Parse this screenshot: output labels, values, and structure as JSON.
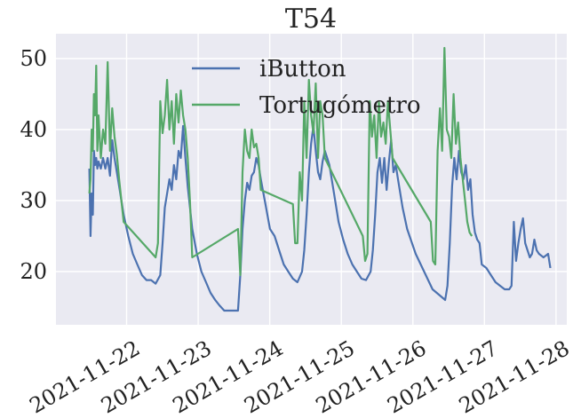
{
  "chart_data": {
    "type": "line",
    "title": "T54",
    "xlabel": "",
    "ylabel": "",
    "x_range": [
      "2021-11-21 00:19",
      "2021-11-28 03:36"
    ],
    "ylim": [
      12.5,
      53.5
    ],
    "x_ticks": [
      "2021-11-22",
      "2021-11-23",
      "2021-11-24",
      "2021-11-25",
      "2021-11-26",
      "2021-11-27",
      "2021-11-28"
    ],
    "y_ticks": [
      20,
      30,
      40,
      50
    ],
    "grid": true,
    "legend_position": "top-center",
    "background": "#EAEAF2",
    "series": [
      {
        "name": "iButton",
        "color": "#4C72B0",
        "points": [
          [
            "2021-11-21 11:31",
            34.5
          ],
          [
            "2021-11-21 11:54",
            25
          ],
          [
            "2021-11-21 12:17",
            31
          ],
          [
            "2021-11-21 12:40",
            28
          ],
          [
            "2021-11-21 13:03",
            37
          ],
          [
            "2021-11-21 13:26",
            35
          ],
          [
            "2021-11-21 13:49",
            36
          ],
          [
            "2021-11-21 14:12",
            34.5
          ],
          [
            "2021-11-21 14:35",
            35.5
          ],
          [
            "2021-11-21 15:21",
            34.5
          ],
          [
            "2021-11-21 16:07",
            36
          ],
          [
            "2021-11-21 16:53",
            34.5
          ],
          [
            "2021-11-21 17:39",
            36
          ],
          [
            "2021-11-21 18:25",
            33.5
          ],
          [
            "2021-11-21 19:11",
            38.5
          ],
          [
            "2021-11-21 19:57",
            36
          ],
          [
            "2021-11-21 20:43",
            34
          ],
          [
            "2021-11-21 21:29",
            32
          ],
          [
            "2021-11-21 23:01",
            28
          ],
          [
            "2021-11-22 00:33",
            25
          ],
          [
            "2021-11-22 02:05",
            22.5
          ],
          [
            "2021-11-22 03:37",
            21
          ],
          [
            "2021-11-22 05:09",
            19.5
          ],
          [
            "2021-11-22 06:41",
            18.8
          ],
          [
            "2021-11-22 08:13",
            18.8
          ],
          [
            "2021-11-22 09:45",
            18.3
          ],
          [
            "2021-11-22 11:17",
            19.5
          ],
          [
            "2021-11-22 12:03",
            24
          ],
          [
            "2021-11-22 12:49",
            29
          ],
          [
            "2021-11-22 13:35",
            31
          ],
          [
            "2021-11-22 14:21",
            33
          ],
          [
            "2021-11-22 15:07",
            31.5
          ],
          [
            "2021-11-22 15:53",
            35
          ],
          [
            "2021-11-22 16:39",
            33
          ],
          [
            "2021-11-22 17:25",
            37
          ],
          [
            "2021-11-22 18:11",
            36
          ],
          [
            "2021-11-22 18:57",
            40.5
          ],
          [
            "2021-11-22 19:43",
            36
          ],
          [
            "2021-11-22 20:29",
            32
          ],
          [
            "2021-11-22 22:01",
            26
          ],
          [
            "2021-11-22 23:33",
            22.5
          ],
          [
            "2021-11-23 01:05",
            20
          ],
          [
            "2021-11-23 02:37",
            18.5
          ],
          [
            "2021-11-23 04:09",
            17
          ],
          [
            "2021-11-23 05:41",
            16
          ],
          [
            "2021-11-23 07:13",
            15.2
          ],
          [
            "2021-11-23 08:45",
            14.5
          ],
          [
            "2021-11-23 10:17",
            14.5
          ],
          [
            "2021-11-23 11:49",
            14.5
          ],
          [
            "2021-11-23 12:35",
            14.5
          ],
          [
            "2021-11-23 13:21",
            14.5
          ],
          [
            "2021-11-23 14:07",
            19.5
          ],
          [
            "2021-11-23 14:53",
            26
          ],
          [
            "2021-11-23 15:39",
            30
          ],
          [
            "2021-11-23 16:25",
            32.5
          ],
          [
            "2021-11-23 17:11",
            31.5
          ],
          [
            "2021-11-23 17:57",
            33.5
          ],
          [
            "2021-11-23 18:43",
            34
          ],
          [
            "2021-11-23 19:29",
            36
          ],
          [
            "2021-11-23 20:15",
            35
          ],
          [
            "2021-11-23 21:01",
            33
          ],
          [
            "2021-11-23 22:33",
            29.5
          ],
          [
            "2021-11-24 00:05",
            26
          ],
          [
            "2021-11-24 01:37",
            25
          ],
          [
            "2021-11-24 03:09",
            23
          ],
          [
            "2021-11-24 04:41",
            21
          ],
          [
            "2021-11-24 06:13",
            20
          ],
          [
            "2021-11-24 07:45",
            19
          ],
          [
            "2021-11-24 09:17",
            18.5
          ],
          [
            "2021-11-24 10:49",
            20
          ],
          [
            "2021-11-24 11:35",
            23
          ],
          [
            "2021-11-24 12:21",
            28
          ],
          [
            "2021-11-24 13:07",
            34
          ],
          [
            "2021-11-24 13:53",
            38
          ],
          [
            "2021-11-24 14:39",
            40.5
          ],
          [
            "2021-11-24 15:25",
            37
          ],
          [
            "2021-11-24 16:11",
            34
          ],
          [
            "2021-11-24 16:57",
            33
          ],
          [
            "2021-11-24 17:43",
            35.5
          ],
          [
            "2021-11-24 18:29",
            37
          ],
          [
            "2021-11-24 19:15",
            36
          ],
          [
            "2021-11-24 20:01",
            35
          ],
          [
            "2021-11-24 21:33",
            31
          ],
          [
            "2021-11-24 23:05",
            27
          ],
          [
            "2021-11-25 00:37",
            24.5
          ],
          [
            "2021-11-25 02:09",
            22.5
          ],
          [
            "2021-11-25 03:41",
            21
          ],
          [
            "2021-11-25 05:13",
            20
          ],
          [
            "2021-11-25 06:45",
            19
          ],
          [
            "2021-11-25 08:17",
            18.8
          ],
          [
            "2021-11-25 09:49",
            20
          ],
          [
            "2021-11-25 10:35",
            23
          ],
          [
            "2021-11-25 11:21",
            28
          ],
          [
            "2021-11-25 12:07",
            34
          ],
          [
            "2021-11-25 12:53",
            36
          ],
          [
            "2021-11-25 13:39",
            32.5
          ],
          [
            "2021-11-25 14:25",
            36
          ],
          [
            "2021-11-25 15:11",
            31.5
          ],
          [
            "2021-11-25 15:57",
            35.5
          ],
          [
            "2021-11-25 16:43",
            38.5
          ],
          [
            "2021-11-25 17:29",
            34
          ],
          [
            "2021-11-25 18:15",
            35
          ],
          [
            "2021-11-25 19:01",
            33
          ],
          [
            "2021-11-25 20:33",
            29
          ],
          [
            "2021-11-25 22:05",
            26
          ],
          [
            "2021-11-26 00:55",
            22.5
          ],
          [
            "2021-11-26 03:45",
            20
          ],
          [
            "2021-11-26 06:35",
            17.5
          ],
          [
            "2021-11-26 09:25",
            16.5
          ],
          [
            "2021-11-26 10:50",
            16
          ],
          [
            "2021-11-26 11:36",
            18
          ],
          [
            "2021-11-26 12:22",
            24
          ],
          [
            "2021-11-26 13:08",
            32
          ],
          [
            "2021-11-26 13:54",
            36
          ],
          [
            "2021-11-26 14:40",
            33
          ],
          [
            "2021-11-26 15:26",
            37
          ],
          [
            "2021-11-26 16:12",
            34
          ],
          [
            "2021-11-26 16:58",
            33
          ],
          [
            "2021-11-26 17:44",
            35
          ],
          [
            "2021-11-26 18:30",
            31.5
          ],
          [
            "2021-11-26 19:16",
            33
          ],
          [
            "2021-11-26 20:02",
            28
          ],
          [
            "2021-11-26 20:48",
            25.5
          ],
          [
            "2021-11-26 21:34",
            24.5
          ],
          [
            "2021-11-26 22:20",
            24
          ],
          [
            "2021-11-26 23:06",
            21
          ],
          [
            "2021-11-27 00:38",
            20.5
          ],
          [
            "2021-11-27 02:10",
            19.5
          ],
          [
            "2021-11-27 03:42",
            18.5
          ],
          [
            "2021-11-27 05:14",
            18
          ],
          [
            "2021-11-27 06:46",
            17.5
          ],
          [
            "2021-11-27 08:18",
            17.5
          ],
          [
            "2021-11-27 09:04",
            18
          ],
          [
            "2021-11-27 09:50",
            27
          ],
          [
            "2021-11-27 10:36",
            21.5
          ],
          [
            "2021-11-27 11:22",
            24
          ],
          [
            "2021-11-27 12:08",
            26
          ],
          [
            "2021-11-27 12:54",
            27.5
          ],
          [
            "2021-11-27 13:40",
            24
          ],
          [
            "2021-11-27 14:26",
            23
          ],
          [
            "2021-11-27 15:12",
            22
          ],
          [
            "2021-11-27 15:58",
            22.5
          ],
          [
            "2021-11-27 16:44",
            24.5
          ],
          [
            "2021-11-27 17:30",
            23
          ],
          [
            "2021-11-27 18:16",
            22.5
          ],
          [
            "2021-11-27 19:48",
            22
          ],
          [
            "2021-11-27 21:20",
            22.5
          ],
          [
            "2021-11-27 22:06",
            20.5
          ]
        ]
      },
      {
        "name": "Tortugómetro",
        "color": "#55A868",
        "points": [
          [
            "2021-11-21 11:31",
            31
          ],
          [
            "2021-11-21 11:54",
            33
          ],
          [
            "2021-11-21 12:17",
            40
          ],
          [
            "2021-11-21 12:40",
            37
          ],
          [
            "2021-11-21 13:03",
            45
          ],
          [
            "2021-11-21 13:26",
            42
          ],
          [
            "2021-11-21 13:49",
            49
          ],
          [
            "2021-11-21 14:12",
            37
          ],
          [
            "2021-11-21 14:35",
            42
          ],
          [
            "2021-11-21 15:21",
            36
          ],
          [
            "2021-11-21 16:07",
            40
          ],
          [
            "2021-11-21 16:53",
            38
          ],
          [
            "2021-11-21 17:39",
            49.5
          ],
          [
            "2021-11-21 18:25",
            37
          ],
          [
            "2021-11-21 19:11",
            43
          ],
          [
            "2021-11-21 19:57",
            39
          ],
          [
            "2021-11-21 20:43",
            36.5
          ],
          [
            "2021-11-21 21:29",
            33
          ],
          [
            "2021-11-21 23:01",
            27
          ],
          [
            "2021-11-22 09:45",
            22
          ],
          [
            "2021-11-22 10:31",
            24
          ],
          [
            "2021-11-22 11:17",
            44
          ],
          [
            "2021-11-22 12:03",
            39.5
          ],
          [
            "2021-11-22 12:49",
            42
          ],
          [
            "2021-11-22 13:35",
            47
          ],
          [
            "2021-11-22 14:21",
            40
          ],
          [
            "2021-11-22 15:07",
            44
          ],
          [
            "2021-11-22 15:53",
            38
          ],
          [
            "2021-11-22 16:39",
            45
          ],
          [
            "2021-11-22 17:25",
            41
          ],
          [
            "2021-11-22 18:11",
            45.5
          ],
          [
            "2021-11-22 18:57",
            42
          ],
          [
            "2021-11-22 19:43",
            40
          ],
          [
            "2021-11-22 20:29",
            36
          ],
          [
            "2021-11-22 21:15",
            30
          ],
          [
            "2021-11-22 22:01",
            22
          ],
          [
            "2021-11-23 13:21",
            26
          ],
          [
            "2021-11-23 14:07",
            19.5
          ],
          [
            "2021-11-23 14:53",
            34
          ],
          [
            "2021-11-23 15:39",
            40
          ],
          [
            "2021-11-23 16:25",
            37
          ],
          [
            "2021-11-23 17:11",
            36
          ],
          [
            "2021-11-23 17:57",
            40
          ],
          [
            "2021-11-23 18:43",
            37.5
          ],
          [
            "2021-11-23 19:29",
            38
          ],
          [
            "2021-11-23 20:15",
            36
          ],
          [
            "2021-11-23 21:01",
            31.5
          ],
          [
            "2021-11-24 07:45",
            29.5
          ],
          [
            "2021-11-24 08:31",
            24
          ],
          [
            "2021-11-24 09:17",
            24
          ],
          [
            "2021-11-24 10:03",
            34
          ],
          [
            "2021-11-24 10:49",
            30
          ],
          [
            "2021-11-24 11:35",
            44
          ],
          [
            "2021-11-24 12:21",
            36
          ],
          [
            "2021-11-24 13:07",
            47
          ],
          [
            "2021-11-24 13:53",
            42
          ],
          [
            "2021-11-24 14:39",
            39.5
          ],
          [
            "2021-11-24 15:25",
            46.5
          ],
          [
            "2021-11-24 16:11",
            36
          ],
          [
            "2021-11-24 16:57",
            44
          ],
          [
            "2021-11-24 17:43",
            42
          ],
          [
            "2021-11-24 18:29",
            36
          ],
          [
            "2021-11-25 07:13",
            25
          ],
          [
            "2021-11-25 07:59",
            21.5
          ],
          [
            "2021-11-25 08:45",
            22.5
          ],
          [
            "2021-11-25 09:31",
            44
          ],
          [
            "2021-11-25 10:17",
            39
          ],
          [
            "2021-11-25 11:03",
            42
          ],
          [
            "2021-11-25 11:49",
            36
          ],
          [
            "2021-11-25 12:35",
            44
          ],
          [
            "2021-11-25 13:21",
            39
          ],
          [
            "2021-11-25 14:07",
            41
          ],
          [
            "2021-11-25 14:53",
            38
          ],
          [
            "2021-11-25 15:39",
            44
          ],
          [
            "2021-11-25 16:25",
            40
          ],
          [
            "2021-11-25 17:11",
            36
          ],
          [
            "2021-11-26 05:59",
            27
          ],
          [
            "2021-11-26 06:45",
            21.5
          ],
          [
            "2021-11-26 07:31",
            21
          ],
          [
            "2021-11-26 08:17",
            37
          ],
          [
            "2021-11-26 09:03",
            43
          ],
          [
            "2021-11-26 09:49",
            37
          ],
          [
            "2021-11-26 10:35",
            51.5
          ],
          [
            "2021-11-26 11:21",
            40
          ],
          [
            "2021-11-26 12:07",
            39
          ],
          [
            "2021-11-26 12:53",
            36
          ],
          [
            "2021-11-26 13:39",
            45
          ],
          [
            "2021-11-26 14:25",
            38
          ],
          [
            "2021-11-26 15:11",
            41
          ],
          [
            "2021-11-26 15:57",
            36
          ],
          [
            "2021-11-26 16:43",
            33
          ],
          [
            "2021-11-26 17:29",
            30
          ],
          [
            "2021-11-26 18:15",
            27
          ],
          [
            "2021-11-26 19:01",
            25.5
          ],
          [
            "2021-11-26 19:47",
            25
          ]
        ]
      }
    ]
  }
}
